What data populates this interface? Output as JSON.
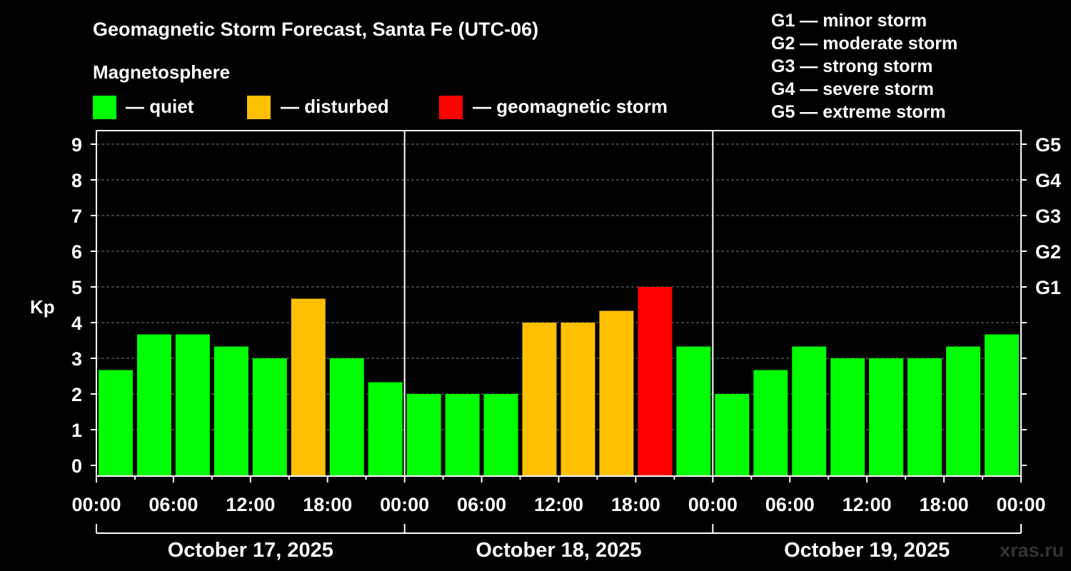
{
  "title": "Geomagnetic Storm Forecast, Santa Fe (UTC-06)",
  "legend": {
    "heading": "Magnetosphere",
    "items": [
      {
        "label": "— quiet",
        "color": "#00ff00"
      },
      {
        "label": "— disturbed",
        "color": "#ffc000"
      },
      {
        "label": "— geomagnetic storm",
        "color": "#ff0000"
      }
    ]
  },
  "scale_legend": [
    "G1 — minor storm",
    "G2 — moderate storm",
    "G3 — strong storm",
    "G4 — severe storm",
    "G5 — extreme storm"
  ],
  "watermark": "xras.ru",
  "chart_data": {
    "type": "bar",
    "ylabel": "Kp",
    "ylim": [
      0,
      9
    ],
    "yticks": [
      "0",
      "1",
      "2",
      "3",
      "4",
      "5",
      "6",
      "7",
      "8",
      "9"
    ],
    "right_ticks": [
      {
        "kp": 5,
        "label": "G1"
      },
      {
        "kp": 6,
        "label": "G2"
      },
      {
        "kp": 7,
        "label": "G3"
      },
      {
        "kp": 8,
        "label": "G4"
      },
      {
        "kp": 9,
        "label": "G5"
      }
    ],
    "xtick_labels": [
      "00:00",
      "06:00",
      "12:00",
      "18:00",
      "00:00",
      "06:00",
      "12:00",
      "18:00",
      "00:00",
      "06:00",
      "12:00",
      "18:00",
      "00:00"
    ],
    "days": [
      "October 17, 2025",
      "October 18, 2025",
      "October 19, 2025"
    ],
    "grid": "dashed horizontal at each Kp level",
    "values": [
      2.67,
      3.67,
      3.67,
      3.33,
      3.0,
      4.67,
      3.0,
      2.33,
      2.0,
      2.0,
      2.0,
      4.0,
      4.0,
      4.33,
      5.0,
      3.33,
      2.0,
      2.67,
      3.33,
      3.0,
      3.0,
      3.0,
      3.33,
      3.67
    ],
    "levels": [
      "quiet",
      "quiet",
      "quiet",
      "quiet",
      "quiet",
      "disturbed",
      "quiet",
      "quiet",
      "quiet",
      "quiet",
      "quiet",
      "disturbed",
      "disturbed",
      "disturbed",
      "storm",
      "quiet",
      "quiet",
      "quiet",
      "quiet",
      "quiet",
      "quiet",
      "quiet",
      "quiet",
      "quiet"
    ],
    "colors": {
      "quiet": "#00ff00",
      "disturbed": "#ffc000",
      "storm": "#ff0000"
    }
  }
}
